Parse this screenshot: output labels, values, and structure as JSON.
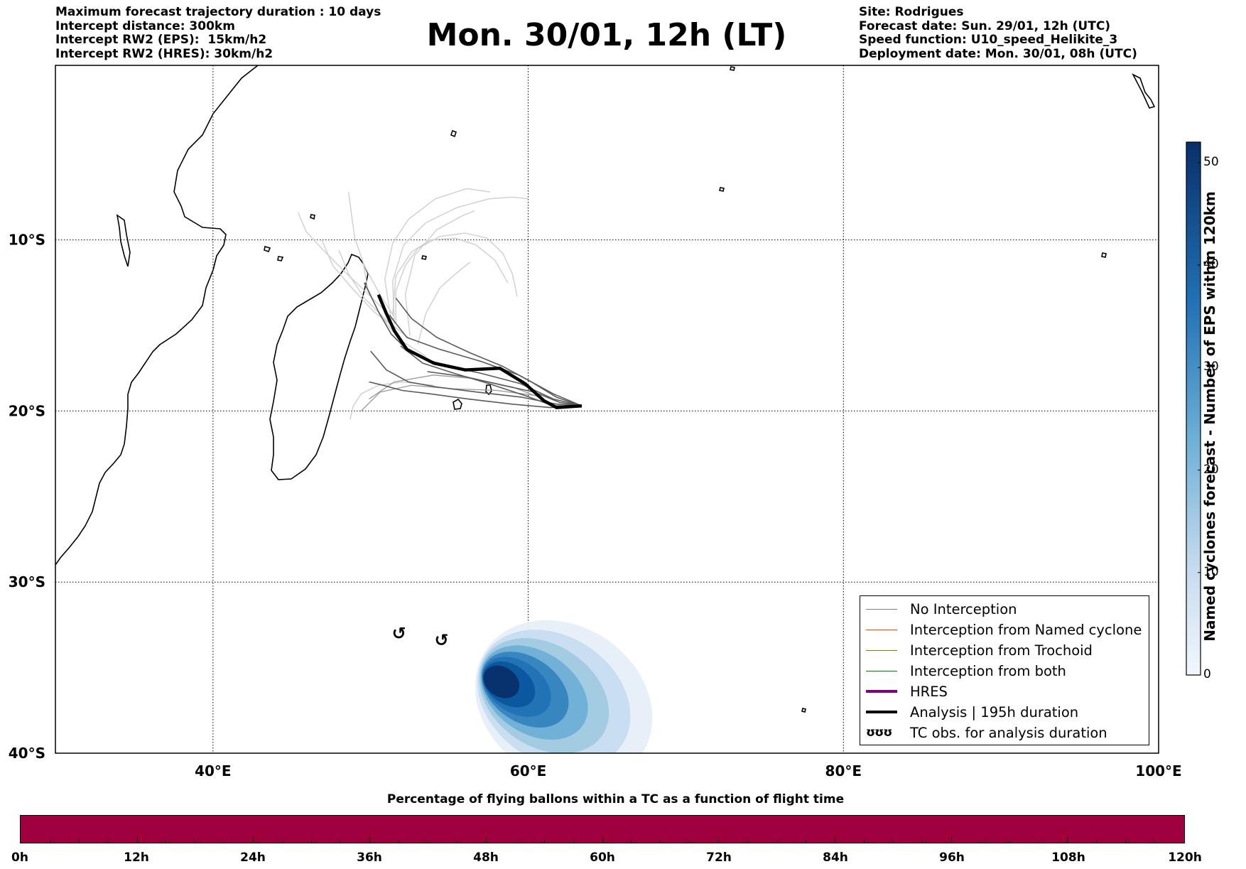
{
  "header_left": [
    "Maximum forecast trajectory duration : 10 days",
    "Intercept distance: 300km",
    "Intercept RW2 (EPS):  15km/h2",
    "Intercept RW2 (HRES): 30km/h2"
  ],
  "header_right": [
    "Site: Rodrigues",
    "Forecast date: Sun. 29/01, 12h (UTC)",
    "Speed function: U10_speed_Helikite_3",
    "Deployment date: Mon. 30/01, 08h (UTC)"
  ],
  "title": "Mon. 30/01, 12h (LT)",
  "legend": [
    {
      "label": "No Interception",
      "color": "#808080",
      "style": "thin"
    },
    {
      "label": "Interception from Named cyclone",
      "color": "#ff4500",
      "style": "thin"
    },
    {
      "label": "Interception from Trochoid",
      "color": "#808000",
      "style": "thin"
    },
    {
      "label": "Interception from both",
      "color": "#008000",
      "style": "thin"
    },
    {
      "label": "HRES",
      "color": "#800080",
      "style": "thick"
    },
    {
      "label": "Analysis | 195h duration",
      "color": "#000000",
      "style": "thick"
    },
    {
      "label": "TC obs. for analysis duration",
      "color": "#000000",
      "style": "symbol",
      "symbol": "ʊʊʊ"
    }
  ],
  "colorbar": {
    "label": "Named cyclones forecast - Number of EPS within 120km",
    "ticks": [
      "0",
      "10",
      "20",
      "30",
      "40",
      "50"
    ],
    "tick_values": [
      0,
      10,
      20,
      30,
      40,
      50
    ],
    "max": 52,
    "color_low": "#e8f1fb",
    "color_high": "#08306b"
  },
  "bottom_bar": {
    "title": "Percentage of flying ballons within a TC as a function of flight time",
    "color": "#9f003d",
    "ticks": [
      "0h",
      "12h",
      "24h",
      "36h",
      "48h",
      "60h",
      "72h",
      "84h",
      "96h",
      "108h",
      "120h"
    ],
    "tick_values": [
      0,
      12,
      24,
      36,
      48,
      60,
      72,
      84,
      96,
      108,
      120
    ]
  },
  "chart_data": {
    "type": "line",
    "title": "Mon. 30/01, 12h (LT)",
    "xlabel": "",
    "ylabel": "",
    "xlim": [
      30,
      100
    ],
    "ylim": [
      -40,
      0.2
    ],
    "x_ticks": [
      40,
      60,
      80,
      100
    ],
    "x_tick_labels": [
      "40°E",
      "60°E",
      "80°E",
      "100°E"
    ],
    "y_ticks": [
      -10,
      -20,
      -30,
      -40
    ],
    "y_tick_labels": [
      "10°S",
      "20°S",
      "30°S",
      "40°S"
    ],
    "grid": true,
    "legend_position": "bottom-right",
    "site": {
      "name": "Rodrigues",
      "lon": 63.4,
      "lat": -19.7
    },
    "analysis_track": {
      "name": "Analysis | 195h duration",
      "lon": [
        63.4,
        62.6,
        61.8,
        61.0,
        59.8,
        58.2,
        56.0,
        54.0,
        52.3,
        51.5,
        51.0,
        50.5
      ],
      "lat": [
        -19.7,
        -19.75,
        -19.8,
        -19.4,
        -18.4,
        -17.5,
        -17.6,
        -17.2,
        -16.4,
        -15.3,
        -14.3,
        -13.2
      ]
    },
    "eps_tracks": [
      {
        "tone": "dark",
        "lon": [
          63.4,
          61.6,
          59.5,
          57.0,
          54.5,
          52.5,
          51.3,
          50.5,
          49.6
        ],
        "lat": [
          -19.7,
          -19.3,
          -18.4,
          -17.8,
          -17.3,
          -16.6,
          -15.5,
          -14.2,
          -12.5
        ]
      },
      {
        "tone": "dark",
        "lon": [
          63.4,
          61.8,
          59.6,
          56.8,
          54.2,
          52.4,
          51.0,
          50.0
        ],
        "lat": [
          -19.7,
          -19.6,
          -19.2,
          -18.9,
          -18.6,
          -18.3,
          -17.6,
          -16.5
        ]
      },
      {
        "tone": "dark",
        "lon": [
          63.4,
          61.6,
          59.4,
          57.0,
          54.4,
          52.3,
          51.2
        ],
        "lat": [
          -19.7,
          -19.0,
          -17.9,
          -17.1,
          -16.4,
          -15.7,
          -14.4
        ]
      },
      {
        "tone": "dark",
        "lon": [
          63.4,
          61.4,
          59.0,
          56.2,
          53.8,
          52.0,
          50.8,
          49.9
        ],
        "lat": [
          -19.7,
          -19.8,
          -19.6,
          -19.3,
          -19.0,
          -18.8,
          -18.5,
          -18.3
        ]
      },
      {
        "tone": "dark",
        "lon": [
          63.4,
          61.8,
          60.2,
          58.4,
          56.3,
          54.2,
          52.6,
          51.6
        ],
        "lat": [
          -19.7,
          -19.2,
          -18.3,
          -17.4,
          -16.6,
          -15.7,
          -14.6,
          -13.4
        ]
      },
      {
        "tone": "dark",
        "lon": [
          63.4,
          62.0,
          60.4,
          58.4,
          56.0,
          53.6
        ],
        "lat": [
          -19.7,
          -19.5,
          -18.9,
          -18.5,
          -18.0,
          -17.7
        ]
      },
      {
        "tone": "dark",
        "lon": [
          63.4,
          61.6,
          59.8,
          57.5,
          55.3,
          53.3,
          51.9
        ],
        "lat": [
          -19.7,
          -19.7,
          -19.1,
          -18.4,
          -17.8,
          -17.2,
          -16.2
        ]
      },
      {
        "tone": "mid",
        "lon": [
          61.0,
          59.0,
          56.5,
          54.0,
          51.5,
          49.9
        ],
        "lat": [
          -19.3,
          -18.6,
          -18.1,
          -17.9,
          -18.3,
          -19.3
        ]
      },
      {
        "tone": "mid",
        "lon": [
          60.5,
          58.0,
          55.2,
          52.6,
          50.6,
          49.4
        ],
        "lat": [
          -19.1,
          -18.8,
          -18.7,
          -18.5,
          -18.9,
          -20.0
        ]
      },
      {
        "tone": "light",
        "lon": [
          53.5,
          51.8,
          50.6,
          49.8,
          49.5
        ],
        "lat": [
          -16.8,
          -15.8,
          -14.4,
          -12.8,
          -11.2
        ]
      },
      {
        "tone": "light",
        "lon": [
          52.5,
          51.0,
          49.6,
          48.6,
          48.0
        ],
        "lat": [
          -15.8,
          -14.7,
          -13.4,
          -12.0,
          -10.6
        ]
      },
      {
        "tone": "light",
        "lon": [
          51.8,
          50.2,
          48.8,
          47.6,
          46.9
        ],
        "lat": [
          -15.3,
          -14.2,
          -12.8,
          -11.5,
          -10.0
        ]
      },
      {
        "tone": "light",
        "lon": [
          51.5,
          50.0,
          48.4,
          46.9,
          45.9,
          45.4
        ],
        "lat": [
          -14.7,
          -13.3,
          -11.9,
          -10.5,
          -9.5,
          -8.4
        ]
      },
      {
        "tone": "light",
        "lon": [
          51.5,
          50.6,
          49.6,
          49.0,
          48.8,
          48.6
        ],
        "lat": [
          -14.5,
          -13.2,
          -11.5,
          -9.9,
          -8.6,
          -7.2
        ]
      },
      {
        "tone": "light",
        "lon": [
          51.3,
          50.9,
          51.4,
          52.4,
          54.1,
          56.1,
          57.6
        ],
        "lat": [
          -14.7,
          -12.3,
          -10.2,
          -8.8,
          -7.6,
          -7.0,
          -7.2
        ]
      },
      {
        "tone": "light",
        "lon": [
          51.5,
          51.4,
          52.1,
          53.5,
          55.5,
          57.5,
          59.0,
          60.0
        ],
        "lat": [
          -14.9,
          -12.4,
          -10.3,
          -9.0,
          -8.1,
          -7.6,
          -7.5,
          -7.6
        ]
      },
      {
        "tone": "light",
        "lon": [
          52.5,
          52.2,
          52.8,
          54.2,
          55.8,
          56.6
        ],
        "lat": [
          -15.6,
          -13.2,
          -10.9,
          -9.4,
          -8.6,
          -8.3
        ]
      },
      {
        "tone": "light",
        "lon": [
          51.6,
          51.6,
          52.2,
          53.0,
          54.4,
          56.0,
          57.4,
          58.4,
          59.0,
          59.3
        ],
        "lat": [
          -14.9,
          -13.0,
          -11.5,
          -10.5,
          -9.8,
          -9.6,
          -9.9,
          -10.8,
          -12.0,
          -13.3
        ]
      },
      {
        "tone": "light",
        "lon": [
          51.4,
          51.6,
          52.6,
          53.8,
          55.4,
          56.7,
          57.9,
          58.7
        ],
        "lat": [
          -14.4,
          -12.1,
          -10.7,
          -10.0,
          -9.9,
          -10.3,
          -11.2,
          -12.5
        ]
      },
      {
        "tone": "light",
        "lon": [
          53.0,
          53.5,
          54.4,
          55.5,
          56.3
        ],
        "lat": [
          -16.1,
          -14.3,
          -12.8,
          -11.9,
          -11.3
        ]
      },
      {
        "tone": "light",
        "lon": [
          54.0,
          52.0,
          50.5,
          49.4,
          48.9,
          48.7
        ],
        "lat": [
          -18.5,
          -18.3,
          -18.5,
          -19.0,
          -19.7,
          -20.5
        ]
      }
    ],
    "tc_obs": [
      {
        "lon": 51.8,
        "lat": -33.0
      },
      {
        "lon": 54.5,
        "lat": -33.4
      }
    ],
    "eps_density": {
      "type": "heatmap",
      "value_label": "Number of EPS within 120km",
      "peak": {
        "lon": 57.2,
        "lat": -35.5,
        "value": 52
      },
      "extent": {
        "lon": [
          55.0,
          69.5
        ],
        "lat": [
          -32.8,
          -40.0
        ]
      }
    }
  }
}
